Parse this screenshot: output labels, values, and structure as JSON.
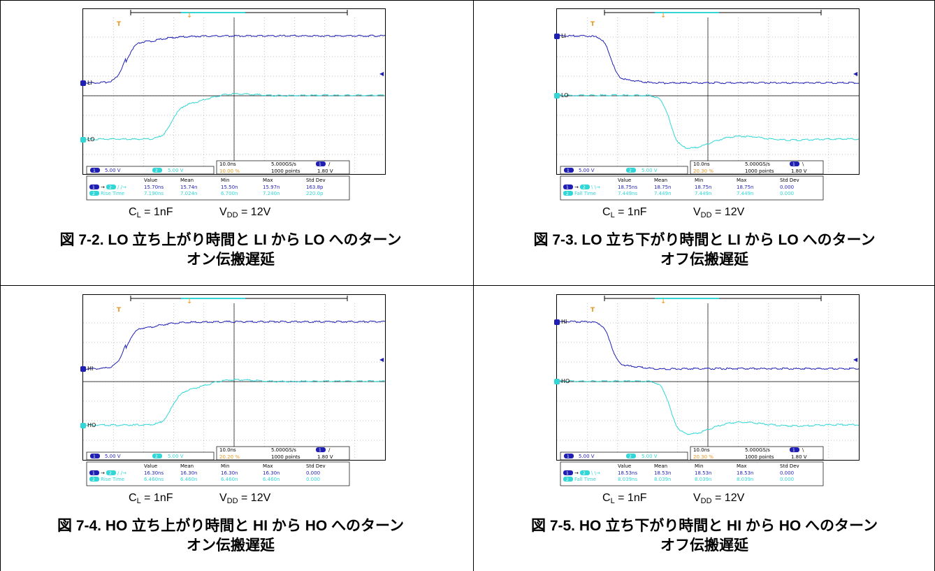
{
  "figures": [
    {
      "caption": "図 7-2. LO 立ち上がり時間と LI から LO へのターンオン伝搬遅延",
      "caption_line1": "図 7-2. LO 立ち上がり時間と LI から LO へのターン",
      "caption_line2": "オン伝搬遅延",
      "cl_label": "C",
      "cl_sub": "L",
      "cl_value": " = 1nF",
      "vdd_label": "V",
      "vdd_sub": "DD",
      "vdd_value": " = 12V",
      "ch1_label": "LI",
      "ch2_label": "LO",
      "ch1_scale": "5.00 V",
      "ch2_scale": "5.00 V",
      "timebase": "10.0ns",
      "sample_rate": "5.000GS/s",
      "trigger_pos": "10.00 %",
      "points": "1000 points",
      "trigger_level": "1.80 V",
      "meas_headers": [
        "Value",
        "Mean",
        "Min",
        "Max",
        "Std Dev"
      ],
      "meas_row1_label": "",
      "meas_row1": [
        "15.70ns",
        "15.74n",
        "15.50n",
        "15.97n",
        "163.8p"
      ],
      "meas_row2_label": "Rise Time",
      "meas_row2": [
        "7.190ns",
        "7.024n",
        "6.700n",
        "7.240n",
        "220.0p"
      ]
    },
    {
      "caption": "図 7-3. LO 立ち下がり時間と LI から LO へのターンオフ伝搬遅延",
      "caption_line1": "図 7-3. LO 立ち下がり時間と LI から LO へのターン",
      "caption_line2": "オフ伝搬遅延",
      "cl_label": "C",
      "cl_sub": "L",
      "cl_value": " = 1nF",
      "vdd_label": "V",
      "vdd_sub": "DD",
      "vdd_value": " = 12V",
      "ch1_label": "LI",
      "ch2_label": "LO",
      "ch1_scale": "5.00 V",
      "ch2_scale": "5.00 V",
      "timebase": "10.0ns",
      "sample_rate": "5.000GS/s",
      "trigger_pos": "20.30 %",
      "points": "1000 points",
      "trigger_level": "1.80 V",
      "meas_headers": [
        "Value",
        "Mean",
        "Min",
        "Max",
        "Std Dev"
      ],
      "meas_row1_label": "",
      "meas_row1": [
        "18.75ns",
        "18.75n",
        "18.75n",
        "18.75n",
        "0.000"
      ],
      "meas_row2_label": "Fall Time",
      "meas_row2": [
        "7.449ns",
        "7.449n",
        "7.449n",
        "7.449n",
        "0.000"
      ]
    },
    {
      "caption": "図 7-4. HO 立ち上がり時間と HI から HO へのターンオン伝搬遅延",
      "caption_line1": "図 7-4. HO 立ち上がり時間と HI から HO へのターン",
      "caption_line2": "オン伝搬遅延",
      "cl_label": "C",
      "cl_sub": "L",
      "cl_value": " = 1nF",
      "vdd_label": "V",
      "vdd_sub": "DD",
      "vdd_value": " = 12V",
      "ch1_label": "HI",
      "ch2_label": "HO",
      "ch1_scale": "5.00 V",
      "ch2_scale": "5.00 V",
      "timebase": "10.0ns",
      "sample_rate": "5.000GS/s",
      "trigger_pos": "20.20 %",
      "points": "1000 points",
      "trigger_level": "1.80 V",
      "meas_headers": [
        "Value",
        "Mean",
        "Min",
        "Max",
        "Std Dev"
      ],
      "meas_row1_label": "",
      "meas_row1": [
        "16.30ns",
        "16.30n",
        "16.30n",
        "16.30n",
        "0.000"
      ],
      "meas_row2_label": "Rise Time",
      "meas_row2": [
        "6.460ns",
        "6.460n",
        "6.460n",
        "6.460n",
        "0.000"
      ]
    },
    {
      "caption": "図 7-5. HO 立ち下がり時間と HI から HO へのターンオフ伝搬遅延",
      "caption_line1": "図 7-5. HO 立ち下がり時間と HI から HO へのターン",
      "caption_line2": "オフ伝搬遅延",
      "cl_label": "C",
      "cl_sub": "L",
      "cl_value": " = 1nF",
      "vdd_label": "V",
      "vdd_sub": "DD",
      "vdd_value": " = 12V",
      "ch1_label": "HI",
      "ch2_label": "HO",
      "ch1_scale": "5.00 V",
      "ch2_scale": "5.00 V",
      "timebase": "10.0ns",
      "sample_rate": "5.000GS/s",
      "trigger_pos": "20.30 %",
      "points": "1000 points",
      "trigger_level": "1.80 V",
      "meas_headers": [
        "Value",
        "Mean",
        "Min",
        "Max",
        "Std Dev"
      ],
      "meas_row1_label": "",
      "meas_row1": [
        "18.53ns",
        "18.53n",
        "18.53n",
        "18.53n",
        "0.000"
      ],
      "meas_row2_label": "Fall Time",
      "meas_row2": [
        "8.039ns",
        "8.039n",
        "8.039n",
        "8.039n",
        "0.000"
      ]
    }
  ],
  "colors": {
    "ch1": "#1f1fb4",
    "ch2": "#33d6d6",
    "trigger": "#e8961e",
    "grid": "#888888"
  }
}
